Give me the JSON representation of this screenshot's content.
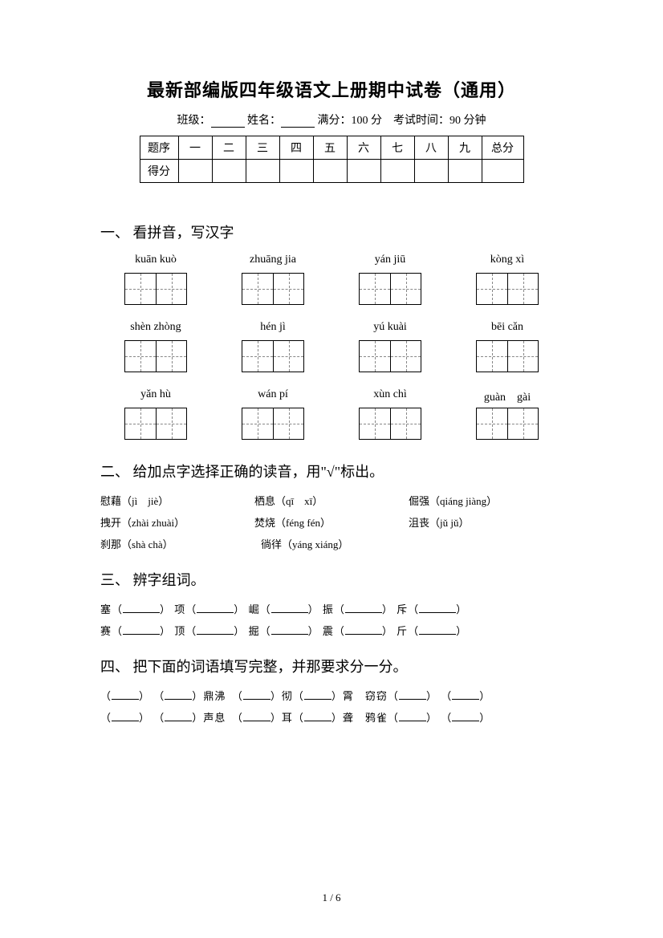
{
  "title": "最新部编版四年级语文上册期中试卷（通用）",
  "meta": {
    "class_label": "班级：",
    "name_label": "姓名：",
    "full_label": "满分：",
    "full_value": "100 分",
    "time_label": "考试时间：",
    "time_value": "90 分钟"
  },
  "score_table": {
    "row1": [
      "题序",
      "一",
      "二",
      "三",
      "四",
      "五",
      "六",
      "七",
      "八",
      "九",
      "总分"
    ],
    "row2_head": "得分"
  },
  "sections": {
    "s1": {
      "head": "一、 看拼音，写汉字"
    },
    "s2": {
      "head": "二、 给加点字选择正确的读音，用\"√\"标出。"
    },
    "s3": {
      "head": "三、 辨字组词。"
    },
    "s4": {
      "head": "四、 把下面的词语填写完整，并那要求分一分。"
    }
  },
  "pinyin_rows": [
    [
      "kuān kuò",
      "zhuāng jia",
      "yán jiū",
      "kòng xì"
    ],
    [
      "shèn zhòng",
      "hén jì",
      "yú kuài",
      "bēi cǎn"
    ],
    [
      "yǎn hù",
      "wán pí",
      "xùn chì",
      "guàn　gài"
    ]
  ],
  "q2": {
    "r1": [
      {
        "han": "慰藉",
        "py": "（jì　jiè）"
      },
      {
        "han": "栖息",
        "py": "（qī　xī）"
      },
      {
        "han": "倔强",
        "py": "（qiáng jiàng）"
      }
    ],
    "r2": [
      {
        "han": "拽开",
        "py": "（zhài zhuài）"
      },
      {
        "han": "焚烧",
        "py": "（féng fén）"
      },
      {
        "han": "沮丧",
        "py": "（jǔ jǔ）"
      }
    ],
    "r3": [
      {
        "han": "刹那",
        "py": "（shà chà）"
      },
      {
        "han": "徜徉",
        "py": "（yáng xiáng）"
      }
    ]
  },
  "q3": {
    "row1": [
      "塞",
      "项",
      "崛",
      "振",
      "斥"
    ],
    "row2": [
      "赛",
      "顶",
      "掘",
      "震",
      "斤"
    ]
  },
  "q4": {
    "row1": [
      "鼎沸",
      "彻",
      "霄　窃窃"
    ],
    "row2": [
      "声息",
      "耳",
      "聋　鸦雀"
    ]
  },
  "footer": "1 / 6",
  "colors": {
    "text": "#000000",
    "bg": "#ffffff",
    "dash": "#888888"
  }
}
